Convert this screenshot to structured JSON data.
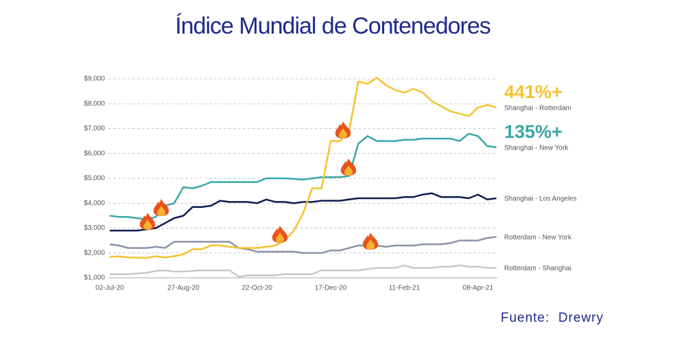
{
  "chart_data": {
    "type": "line",
    "title": "Índice Mundial de Contenedores",
    "source": "Fuente:  Drewry",
    "categories": [
      "02-Jul-20",
      null,
      null,
      null,
      null,
      null,
      null,
      null,
      "27-Aug-20",
      null,
      null,
      null,
      null,
      null,
      null,
      null,
      "22-Oct-20",
      null,
      null,
      null,
      null,
      null,
      null,
      null,
      "17-Dec-20",
      null,
      null,
      null,
      null,
      null,
      null,
      null,
      "11-Feb-21",
      null,
      null,
      null,
      null,
      null,
      null,
      null,
      "08-Apr-21",
      null,
      null
    ],
    "series": [
      {
        "name": "Shanghai - Rotterdam",
        "color": "#f5c12e",
        "values": [
          1850,
          1860,
          1820,
          1810,
          1800,
          1870,
          1820,
          1870,
          1950,
          2150,
          2150,
          2300,
          2300,
          2250,
          2200,
          2200,
          2200,
          2250,
          2300,
          2500,
          2900,
          3600,
          4600,
          4600,
          6500,
          6500,
          6900,
          8900,
          8800,
          9050,
          8750,
          8550,
          8450,
          8600,
          8450,
          8100,
          7900,
          7700,
          7600,
          7500,
          7850,
          7950,
          7850
        ]
      },
      {
        "name": "Shanghai - New York",
        "color": "#3aa6a6",
        "values": [
          3500,
          3450,
          3450,
          3400,
          3350,
          3450,
          3900,
          4000,
          4650,
          4600,
          4700,
          4850,
          4850,
          4850,
          4850,
          4850,
          4850,
          5000,
          5000,
          5000,
          4980,
          4950,
          5000,
          5050,
          5050,
          5050,
          5100,
          6400,
          6700,
          6500,
          6500,
          6500,
          6550,
          6550,
          6600,
          6600,
          6600,
          6600,
          6500,
          6800,
          6700,
          6300,
          6250
        ]
      },
      {
        "name": "Shanghai - Los Angeles",
        "color": "#0d1b4f",
        "values": [
          2900,
          2900,
          2900,
          2900,
          2950,
          3000,
          3200,
          3400,
          3500,
          3850,
          3850,
          3900,
          4100,
          4050,
          4050,
          4050,
          4000,
          4150,
          4050,
          4050,
          4000,
          4050,
          4050,
          4100,
          4100,
          4100,
          4150,
          4200,
          4200,
          4200,
          4200,
          4200,
          4250,
          4250,
          4350,
          4400,
          4250,
          4250,
          4250,
          4200,
          4350,
          4150,
          4200
        ]
      },
      {
        "name": "Rotterdam - New York",
        "color": "#8a93a8",
        "values": [
          2350,
          2300,
          2200,
          2200,
          2200,
          2250,
          2200,
          2450,
          2450,
          2450,
          2450,
          2450,
          2450,
          2450,
          2200,
          2150,
          2050,
          2050,
          2050,
          2050,
          2050,
          2000,
          2000,
          2000,
          2100,
          2100,
          2200,
          2300,
          2300,
          2300,
          2250,
          2300,
          2300,
          2300,
          2350,
          2350,
          2350,
          2400,
          2500,
          2500,
          2500,
          2600,
          2650
        ]
      },
      {
        "name": "Rotterdam - Shanghai",
        "color": "#c8c8c8",
        "values": [
          1150,
          1150,
          1150,
          1180,
          1200,
          1280,
          1300,
          1250,
          1250,
          1280,
          1300,
          1300,
          1300,
          1300,
          1050,
          1100,
          1100,
          1100,
          1100,
          1150,
          1150,
          1150,
          1150,
          1300,
          1300,
          1300,
          1300,
          1300,
          1350,
          1400,
          1400,
          1400,
          1500,
          1400,
          1400,
          1400,
          1450,
          1450,
          1500,
          1450,
          1450,
          1400,
          1400
        ]
      }
    ],
    "annotations": [
      {
        "text": "441%+"
      },
      {
        "text": "135%+"
      }
    ],
    "ylim": [
      1000,
      9000
    ],
    "yticks": [
      {
        "value": 1000,
        "label": "$1,000"
      },
      {
        "value": 2000,
        "label": "$2,000"
      },
      {
        "value": 3000,
        "label": "$3,000"
      },
      {
        "value": 4000,
        "label": "$4,000"
      },
      {
        "value": 5000,
        "label": "$5,000"
      },
      {
        "value": 6000,
        "label": "$6,000"
      },
      {
        "value": 7000,
        "label": "$7,000"
      },
      {
        "value": 8000,
        "label": "$8,000"
      },
      {
        "value": 9000,
        "label": "$9,000"
      }
    ],
    "grid": true
  }
}
